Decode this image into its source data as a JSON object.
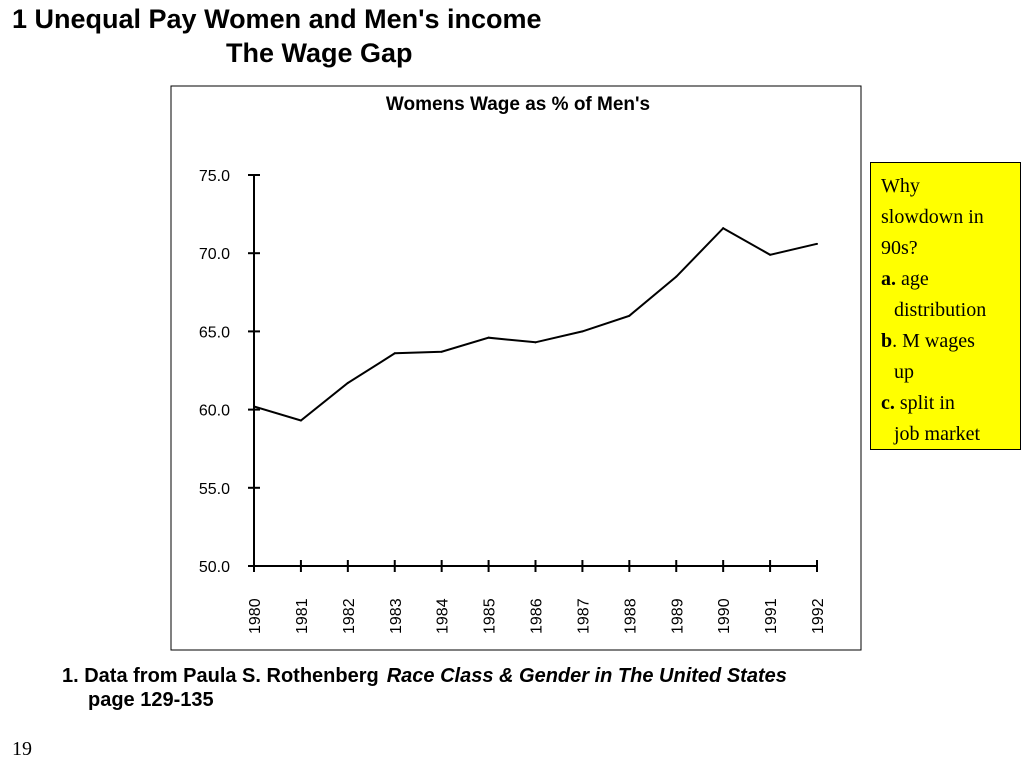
{
  "slide": {
    "title_line1": "1 Unequal Pay Women and Men's income",
    "title_line2": "The Wage Gap",
    "page_number": "19"
  },
  "notes": {
    "q1": "Why",
    "q2": "slowdown in",
    "q3": "90s?",
    "a_label": "a.",
    "a_text1": " age",
    "a_text2": "distribution",
    "b_label": "b",
    "b_text1": ". M wages",
    "b_text2": "up",
    "c_label": "c.",
    "c_text1": " split in",
    "c_text2": "job market"
  },
  "footnote": {
    "prefix": "1. Data from Paula S. Rothenberg",
    "source": "Race Class & Gender in The United States",
    "page": "page 129-135"
  },
  "chart_data": {
    "type": "line",
    "title": "Womens Wage as % of Men's",
    "xlabel": "",
    "ylabel": "",
    "categories": [
      "1980",
      "1981",
      "1982",
      "1983",
      "1984",
      "1985",
      "1986",
      "1987",
      "1988",
      "1989",
      "1990",
      "1991",
      "1992"
    ],
    "series": [
      {
        "values": [
          60.2,
          59.3,
          61.7,
          63.6,
          63.7,
          64.6,
          64.3,
          65.0,
          66.0,
          68.5,
          71.6,
          69.9,
          70.6
        ]
      }
    ],
    "ylim": [
      50.0,
      75.0
    ],
    "yticks": [
      "50.0",
      "55.0",
      "60.0",
      "65.0",
      "70.0",
      "75.0"
    ],
    "grid": false,
    "legend": "none",
    "line_color": "#000000"
  }
}
